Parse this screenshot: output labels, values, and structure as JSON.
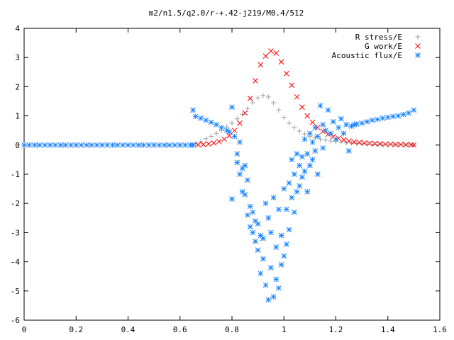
{
  "chart_data": {
    "type": "scatter",
    "title": "m2/n1.5/q2.0/r-+.42-j219/M0.4/512",
    "xlabel": "",
    "ylabel": "",
    "xlim": [
      0,
      1.6
    ],
    "ylim": [
      -6,
      4
    ],
    "x_ticks": [
      "0",
      "0.2",
      "0.4",
      "0.6",
      "0.8",
      "1",
      "1.2",
      "1.4",
      "1.6"
    ],
    "y_ticks": [
      "-6",
      "-5",
      "-4",
      "-3",
      "-2",
      "-1",
      "0",
      "1",
      "2",
      "3",
      "4"
    ],
    "legend_position": "top-right",
    "series": [
      {
        "name": "R stress/E",
        "marker": "plus",
        "color": "#a0a0a0",
        "points": [
          [
            0.0,
            0
          ],
          [
            0.05,
            0
          ],
          [
            0.1,
            0
          ],
          [
            0.15,
            0
          ],
          [
            0.2,
            0
          ],
          [
            0.25,
            0
          ],
          [
            0.3,
            0
          ],
          [
            0.35,
            0
          ],
          [
            0.4,
            0
          ],
          [
            0.45,
            0
          ],
          [
            0.5,
            0
          ],
          [
            0.55,
            0
          ],
          [
            0.6,
            0
          ],
          [
            0.65,
            0
          ],
          [
            0.66,
            0.05
          ],
          [
            0.68,
            0.12
          ],
          [
            0.7,
            0.22
          ],
          [
            0.72,
            0.3
          ],
          [
            0.74,
            0.4
          ],
          [
            0.76,
            0.5
          ],
          [
            0.78,
            0.62
          ],
          [
            0.8,
            0.75
          ],
          [
            0.82,
            0.9
          ],
          [
            0.84,
            1.05
          ],
          [
            0.86,
            1.25
          ],
          [
            0.88,
            1.45
          ],
          [
            0.9,
            1.62
          ],
          [
            0.92,
            1.7
          ],
          [
            0.94,
            1.65
          ],
          [
            0.96,
            1.45
          ],
          [
            0.98,
            1.2
          ],
          [
            1.0,
            0.95
          ],
          [
            1.02,
            0.75
          ],
          [
            1.04,
            0.6
          ],
          [
            1.06,
            0.48
          ],
          [
            1.08,
            0.38
          ],
          [
            1.1,
            0.3
          ],
          [
            1.12,
            0.25
          ],
          [
            1.14,
            0.2
          ],
          [
            1.16,
            0.17
          ],
          [
            1.18,
            0.14
          ],
          [
            1.2,
            0.12
          ],
          [
            1.22,
            0.1
          ],
          [
            1.24,
            0.08
          ],
          [
            1.26,
            0.07
          ],
          [
            1.28,
            0.06
          ],
          [
            1.3,
            0.05
          ],
          [
            1.32,
            0.04
          ],
          [
            1.34,
            0.03
          ],
          [
            1.36,
            0.03
          ],
          [
            1.38,
            0.02
          ],
          [
            1.4,
            0.02
          ],
          [
            1.42,
            0.02
          ],
          [
            1.44,
            0.01
          ],
          [
            1.46,
            0.01
          ],
          [
            1.48,
            0.01
          ],
          [
            1.5,
            0.0
          ]
        ]
      },
      {
        "name": "G work/E",
        "marker": "cross",
        "color": "#ff0000",
        "points": [
          [
            0.65,
            0
          ],
          [
            0.67,
            0.01
          ],
          [
            0.69,
            0.02
          ],
          [
            0.71,
            0.04
          ],
          [
            0.73,
            0.07
          ],
          [
            0.75,
            0.12
          ],
          [
            0.77,
            0.2
          ],
          [
            0.79,
            0.32
          ],
          [
            0.81,
            0.5
          ],
          [
            0.83,
            0.75
          ],
          [
            0.85,
            1.1
          ],
          [
            0.87,
            1.6
          ],
          [
            0.89,
            2.2
          ],
          [
            0.91,
            2.75
          ],
          [
            0.93,
            3.05
          ],
          [
            0.95,
            3.22
          ],
          [
            0.97,
            3.15
          ],
          [
            0.99,
            2.85
          ],
          [
            1.01,
            2.45
          ],
          [
            1.03,
            2.05
          ],
          [
            1.05,
            1.65
          ],
          [
            1.07,
            1.3
          ],
          [
            1.09,
            1.0
          ],
          [
            1.11,
            0.78
          ],
          [
            1.13,
            0.6
          ],
          [
            1.15,
            0.47
          ],
          [
            1.17,
            0.37
          ],
          [
            1.19,
            0.29
          ],
          [
            1.21,
            0.23
          ],
          [
            1.23,
            0.18
          ],
          [
            1.25,
            0.14
          ],
          [
            1.27,
            0.11
          ],
          [
            1.29,
            0.09
          ],
          [
            1.31,
            0.07
          ],
          [
            1.33,
            0.06
          ],
          [
            1.35,
            0.05
          ],
          [
            1.37,
            0.04
          ],
          [
            1.39,
            0.03
          ],
          [
            1.41,
            0.03
          ],
          [
            1.43,
            0.02
          ],
          [
            1.45,
            0.02
          ],
          [
            1.47,
            0.01
          ],
          [
            1.49,
            0.01
          ],
          [
            1.5,
            0.0
          ]
        ]
      },
      {
        "name": "Acoustic flux/E",
        "marker": "star",
        "color": "#1a85ff",
        "points": [
          [
            0.0,
            0
          ],
          [
            0.02,
            0
          ],
          [
            0.04,
            0
          ],
          [
            0.06,
            0
          ],
          [
            0.08,
            0
          ],
          [
            0.1,
            0
          ],
          [
            0.12,
            0
          ],
          [
            0.14,
            0
          ],
          [
            0.16,
            0
          ],
          [
            0.18,
            0
          ],
          [
            0.2,
            0
          ],
          [
            0.22,
            0
          ],
          [
            0.24,
            0
          ],
          [
            0.26,
            0
          ],
          [
            0.28,
            0
          ],
          [
            0.3,
            0
          ],
          [
            0.32,
            0
          ],
          [
            0.34,
            0
          ],
          [
            0.36,
            0
          ],
          [
            0.38,
            0
          ],
          [
            0.4,
            0
          ],
          [
            0.42,
            0
          ],
          [
            0.44,
            0
          ],
          [
            0.46,
            0
          ],
          [
            0.48,
            0
          ],
          [
            0.5,
            0
          ],
          [
            0.52,
            0
          ],
          [
            0.54,
            0
          ],
          [
            0.56,
            0
          ],
          [
            0.58,
            0
          ],
          [
            0.6,
            0
          ],
          [
            0.62,
            0
          ],
          [
            0.64,
            0
          ],
          [
            0.65,
            0
          ],
          [
            0.65,
            1.2
          ],
          [
            0.66,
            0.98
          ],
          [
            0.68,
            0.92
          ],
          [
            0.7,
            0.85
          ],
          [
            0.72,
            0.78
          ],
          [
            0.74,
            0.7
          ],
          [
            0.76,
            0.6
          ],
          [
            0.78,
            0.5
          ],
          [
            0.79,
            0.45
          ],
          [
            0.8,
            1.3
          ],
          [
            0.8,
            -1.85
          ],
          [
            0.81,
            0.3
          ],
          [
            0.82,
            -0.3
          ],
          [
            0.82,
            -0.6
          ],
          [
            0.83,
            0.1
          ],
          [
            0.83,
            -1.0
          ],
          [
            0.84,
            -0.8
          ],
          [
            0.84,
            -1.6
          ],
          [
            0.85,
            -0.7
          ],
          [
            0.85,
            -1.7
          ],
          [
            0.86,
            -1.2
          ],
          [
            0.86,
            -2.4
          ],
          [
            0.87,
            -2.1
          ],
          [
            0.87,
            -2.8
          ],
          [
            0.88,
            -2.3
          ],
          [
            0.88,
            -3.0
          ],
          [
            0.89,
            -2.6
          ],
          [
            0.89,
            -3.3
          ],
          [
            0.9,
            -2.7
          ],
          [
            0.9,
            -3.6
          ],
          [
            0.91,
            -3.1
          ],
          [
            0.91,
            -4.4
          ],
          [
            0.92,
            -3.2
          ],
          [
            0.92,
            -3.9
          ],
          [
            0.93,
            -2.0
          ],
          [
            0.93,
            -4.8
          ],
          [
            0.94,
            -2.5
          ],
          [
            0.94,
            -5.3
          ],
          [
            0.95,
            -3.0
          ],
          [
            0.95,
            -4.2
          ],
          [
            0.96,
            -1.8
          ],
          [
            0.96,
            -5.2
          ],
          [
            0.97,
            -3.5
          ],
          [
            0.97,
            -4.6
          ],
          [
            0.98,
            -2.2
          ],
          [
            0.98,
            -4.9
          ],
          [
            0.99,
            -3.1
          ],
          [
            0.99,
            -4.1
          ],
          [
            1.0,
            -1.5
          ],
          [
            1.0,
            -3.8
          ],
          [
            1.01,
            -2.2
          ],
          [
            1.01,
            -3.4
          ],
          [
            1.02,
            -1.3
          ],
          [
            1.02,
            -2.9
          ],
          [
            1.03,
            -0.5
          ],
          [
            1.03,
            -1.8
          ],
          [
            1.04,
            -1.0
          ],
          [
            1.04,
            -2.3
          ],
          [
            1.05,
            -0.3
          ],
          [
            1.05,
            -1.6
          ],
          [
            1.06,
            -0.7
          ],
          [
            1.06,
            -1.4
          ],
          [
            1.07,
            -0.4
          ],
          [
            1.07,
            -1.1
          ],
          [
            1.08,
            0.2
          ],
          [
            1.08,
            -0.9
          ],
          [
            1.09,
            -0.3
          ],
          [
            1.09,
            -1.6
          ],
          [
            1.1,
            0.4
          ],
          [
            1.1,
            -0.7
          ],
          [
            1.11,
            0.1
          ],
          [
            1.11,
            -0.5
          ],
          [
            1.12,
            0.6
          ],
          [
            1.12,
            -0.2
          ],
          [
            1.13,
            0.3
          ],
          [
            1.13,
            -1.0
          ],
          [
            1.14,
            1.35
          ],
          [
            1.15,
            0.7
          ],
          [
            1.15,
            -0.1
          ],
          [
            1.16,
            0.5
          ],
          [
            1.17,
            1.2
          ],
          [
            1.18,
            0.4
          ],
          [
            1.19,
            0.8
          ],
          [
            1.2,
            0.2
          ],
          [
            1.21,
            0.6
          ],
          [
            1.22,
            0.9
          ],
          [
            1.23,
            0.4
          ],
          [
            1.24,
            0.7
          ],
          [
            1.25,
            -0.2
          ],
          [
            1.26,
            0.65
          ],
          [
            1.27,
            0.7
          ],
          [
            1.28,
            0.72
          ],
          [
            1.3,
            0.75
          ],
          [
            1.32,
            0.8
          ],
          [
            1.34,
            0.85
          ],
          [
            1.36,
            0.88
          ],
          [
            1.38,
            0.92
          ],
          [
            1.4,
            0.95
          ],
          [
            1.42,
            0.98
          ],
          [
            1.44,
            1.0
          ],
          [
            1.46,
            1.05
          ],
          [
            1.48,
            1.1
          ],
          [
            1.5,
            1.2
          ]
        ]
      }
    ]
  }
}
